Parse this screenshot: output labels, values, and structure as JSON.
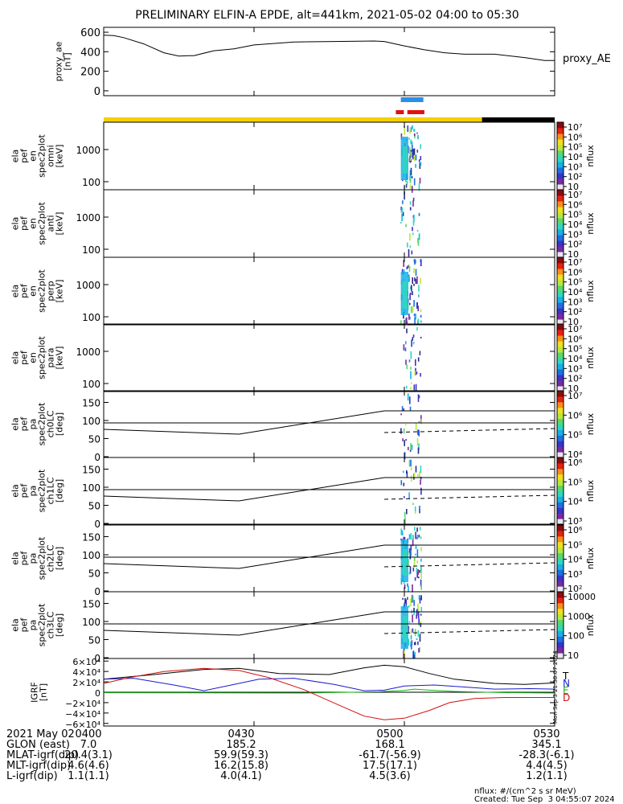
{
  "title": "PRELIMINARY ELFIN-A EPDE, alt=441km, 2021-05-02 04:00 to 05:30",
  "colors": {
    "yellow": "#f5d000",
    "black": "#000000",
    "blue_bar": "#2b8fe8",
    "red_bar": "#e31010",
    "bx": "#1a1acd",
    "by": "#13b413",
    "bz": "#d01010",
    "btot": "#000000"
  },
  "chart_data": [
    {
      "type": "line",
      "name": "proxy_ae",
      "ylabel_lines": [
        "proxy_ae",
        "[nT]"
      ],
      "legend": "proxy_AE",
      "yticks": [
        "600",
        "400",
        "200",
        "0"
      ],
      "ylim": [
        -50,
        650
      ],
      "xlim_min": [
        0,
        90
      ],
      "series": [
        {
          "name": "proxy_AE",
          "x": [
            0,
            2,
            4,
            8,
            12,
            15,
            17,
            18,
            22,
            26,
            30,
            38,
            46,
            54,
            56,
            60,
            64,
            68,
            72,
            78,
            84,
            88,
            90
          ],
          "y": [
            570,
            565,
            545,
            480,
            390,
            355,
            360,
            360,
            410,
            430,
            470,
            500,
            505,
            510,
            505,
            460,
            420,
            390,
            375,
            375,
            340,
            310,
            310
          ]
        }
      ]
    },
    {
      "type": "heatmap",
      "name": "ela_pef_en_spec2plot_omni",
      "ylabel_lines": [
        "ela",
        "pef",
        "en",
        "spec2plot",
        "omni",
        "[keV]"
      ],
      "yticks": [
        "1000",
        "100"
      ],
      "cbar_label": "nflux",
      "cbar_ticks": [
        "10",
        "10²",
        "10³",
        "10⁴",
        "10⁵",
        "10⁶",
        "10⁷"
      ]
    },
    {
      "type": "heatmap",
      "name": "ela_pef_en_spec2plot_anti",
      "ylabel_lines": [
        "ela",
        "pef",
        "en",
        "spec2plot",
        "anti",
        "[keV]"
      ],
      "yticks": [
        "1000",
        "100"
      ],
      "cbar_label": "nflux",
      "cbar_ticks": [
        "10",
        "10²",
        "10³",
        "10⁴",
        "10⁵",
        "10⁶",
        "10⁷"
      ]
    },
    {
      "type": "heatmap",
      "name": "ela_pef_en_spec2plot_perp",
      "ylabel_lines": [
        "ela",
        "pef",
        "en",
        "spec2plot",
        "perp",
        "[keV]"
      ],
      "yticks": [
        "1000",
        "100"
      ],
      "cbar_label": "nflux",
      "cbar_ticks": [
        "10",
        "10²",
        "10³",
        "10⁴",
        "10⁵",
        "10⁶",
        "10⁷"
      ]
    },
    {
      "type": "heatmap",
      "name": "ela_pef_en_spec2plot_para",
      "ylabel_lines": [
        "ela",
        "pef",
        "en",
        "spec2plot",
        "para",
        "[keV]"
      ],
      "yticks": [
        "1000",
        "100"
      ],
      "cbar_label": "nflux",
      "cbar_ticks": [
        "10",
        "10²",
        "10³",
        "10⁴",
        "10⁵",
        "10⁶",
        "10⁷"
      ]
    },
    {
      "type": "heatmap",
      "name": "ela_pef_pa_spec2plot_ch0LC",
      "ylabel_lines": [
        "ela",
        "pef",
        "pa",
        "spec2plot",
        "ch0LC",
        "[deg]"
      ],
      "yticks": [
        "150",
        "100",
        "50",
        "0"
      ],
      "cbar_label": "nflux",
      "cbar_ticks": [
        "10⁴",
        "10⁵",
        "10⁶",
        "10⁷"
      ]
    },
    {
      "type": "heatmap",
      "name": "ela_pef_pa_spec2plot_ch1LC",
      "ylabel_lines": [
        "ela",
        "pef",
        "pa",
        "spec2plot",
        "ch1LC",
        "[deg]"
      ],
      "yticks": [
        "150",
        "100",
        "50",
        "0"
      ],
      "cbar_label": "nflux",
      "cbar_ticks": [
        "10³",
        "10⁴",
        "10⁵",
        "10⁶"
      ]
    },
    {
      "type": "heatmap",
      "name": "ela_pef_pa_spec2plot_ch2LC",
      "ylabel_lines": [
        "ela",
        "pef",
        "pa",
        "spec2plot",
        "ch2LC",
        "[deg]"
      ],
      "yticks": [
        "150",
        "100",
        "50",
        "0"
      ],
      "cbar_label": "nflux",
      "cbar_ticks": [
        "10²",
        "10³",
        "10⁴",
        "10⁵",
        "10⁶"
      ]
    },
    {
      "type": "heatmap",
      "name": "ela_pef_pa_spec2plot_ch3LC",
      "ylabel_lines": [
        "ela",
        "pef",
        "pa",
        "spec2plot",
        "ch3LC",
        "[deg]"
      ],
      "yticks": [
        "150",
        "100",
        "50",
        "0"
      ],
      "cbar_label": "nflux",
      "cbar_ticks": [
        "10",
        "100",
        "1000",
        "10000"
      ]
    },
    {
      "type": "line",
      "name": "IGRF",
      "ylabel_lines": [
        "IGRF",
        "[nT]"
      ],
      "yticks": [
        "6×10⁴",
        "4×10⁴",
        "2×10⁴",
        "0",
        "−2×10⁴",
        "−4×10⁴",
        "−6×10⁴"
      ],
      "ylim": [
        -65000,
        65000
      ],
      "legend": [
        "T",
        "N",
        "E",
        "D"
      ],
      "series": [
        {
          "name": "T",
          "x": [
            0,
            10,
            20,
            27,
            35,
            45,
            52,
            56,
            60,
            65,
            70,
            78,
            84,
            90
          ],
          "y": [
            25000,
            34000,
            44000,
            46000,
            36000,
            34000,
            47000,
            52000,
            49000,
            36000,
            25000,
            17000,
            15000,
            18000
          ]
        },
        {
          "name": "N",
          "x": [
            0,
            6,
            14,
            20,
            25,
            31,
            38,
            46,
            52,
            56,
            60,
            66,
            72,
            78,
            85,
            90
          ],
          "y": [
            25000,
            27000,
            14000,
            3000,
            13000,
            25000,
            27000,
            15000,
            3000,
            4000,
            12000,
            14000,
            10000,
            6000,
            7000,
            6000
          ]
        },
        {
          "name": "E",
          "x": [
            0,
            20,
            40,
            55,
            60,
            62,
            65,
            70,
            80,
            90
          ],
          "y": [
            -1000,
            -1200,
            -1500,
            1000,
            3500,
            6000,
            4000,
            1500,
            -800,
            -1500
          ]
        },
        {
          "name": "D",
          "x": [
            0,
            5,
            12,
            20,
            27,
            33,
            40,
            47,
            52,
            56,
            60,
            65,
            69,
            74,
            80,
            90
          ],
          "y": [
            17000,
            28000,
            40000,
            46000,
            42000,
            28000,
            5000,
            -25000,
            -46000,
            -53000,
            -50000,
            -35000,
            -20000,
            -12000,
            -10000,
            -10000
          ]
        }
      ]
    }
  ],
  "xaxis_footer": {
    "rows": [
      {
        "label": "2021 May 02",
        "values": [
          "0400",
          "0430",
          "0500",
          "0530"
        ]
      },
      {
        "label": "GLON (east)",
        "values": [
          "7.0",
          "185.2",
          "168.1",
          "345.1"
        ]
      },
      {
        "label": "MLAT-igrf(dip)",
        "values": [
          "20.4(3.1)",
          "59.9(59.3)",
          "-61.7(-56.9)",
          "-28.3(-6.1)"
        ]
      },
      {
        "label": "MLT-igrf(dip)",
        "values": [
          "4.6(4.6)",
          "16.2(15.8)",
          "17.5(17.1)",
          "4.4(4.5)"
        ]
      },
      {
        "label": "L-igrf(dip)",
        "values": [
          "1.1(1.1)",
          "4.0(4.1)",
          "4.5(3.6)",
          "1.2(1.1)"
        ]
      }
    ]
  },
  "footnote": {
    "units": "nflux: #/(cm^2 s sr MeV)",
    "created": "Created: Tue Sep  3 04:55:07 2024"
  },
  "side_stamp": "Mon Sep  3 21:38:07 2024"
}
